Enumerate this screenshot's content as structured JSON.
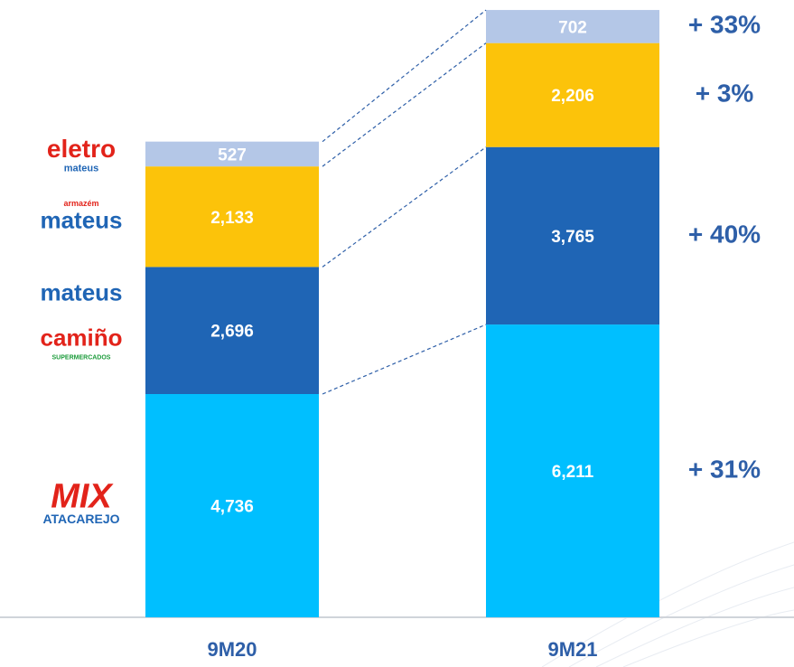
{
  "chart_data": {
    "type": "stacked-bar",
    "categories": [
      "9M20",
      "9M21"
    ],
    "series": [
      {
        "logo": [
          "MIX",
          "ATACAREJO"
        ],
        "color": "#00bfff",
        "values": [
          4736,
          6211
        ],
        "value_labels": [
          "4,736",
          "6,211"
        ]
      },
      {
        "logo": [
          "mateus",
          "camiño",
          "SUPERMERCADOS"
        ],
        "color": "#1f65b5",
        "values": [
          2696,
          3765
        ],
        "value_labels": [
          "2,696",
          "3,765"
        ]
      },
      {
        "logo": [
          "armazém",
          "mateus"
        ],
        "color": "#fcc30a",
        "values": [
          2133,
          2206
        ],
        "value_labels": [
          "2,133",
          "2,206"
        ]
      },
      {
        "logo": [
          "eletro",
          "mateus"
        ],
        "color": "#b4c7e7",
        "values": [
          527,
          702
        ],
        "value_labels": [
          "527",
          "702"
        ]
      }
    ],
    "growth": {
      "values": [
        31,
        40,
        3,
        33
      ],
      "value_labels": [
        "+ 31%",
        "+ 40%",
        "+ 3%",
        "+ 33%"
      ]
    },
    "ylim": [
      0,
      13000
    ]
  }
}
